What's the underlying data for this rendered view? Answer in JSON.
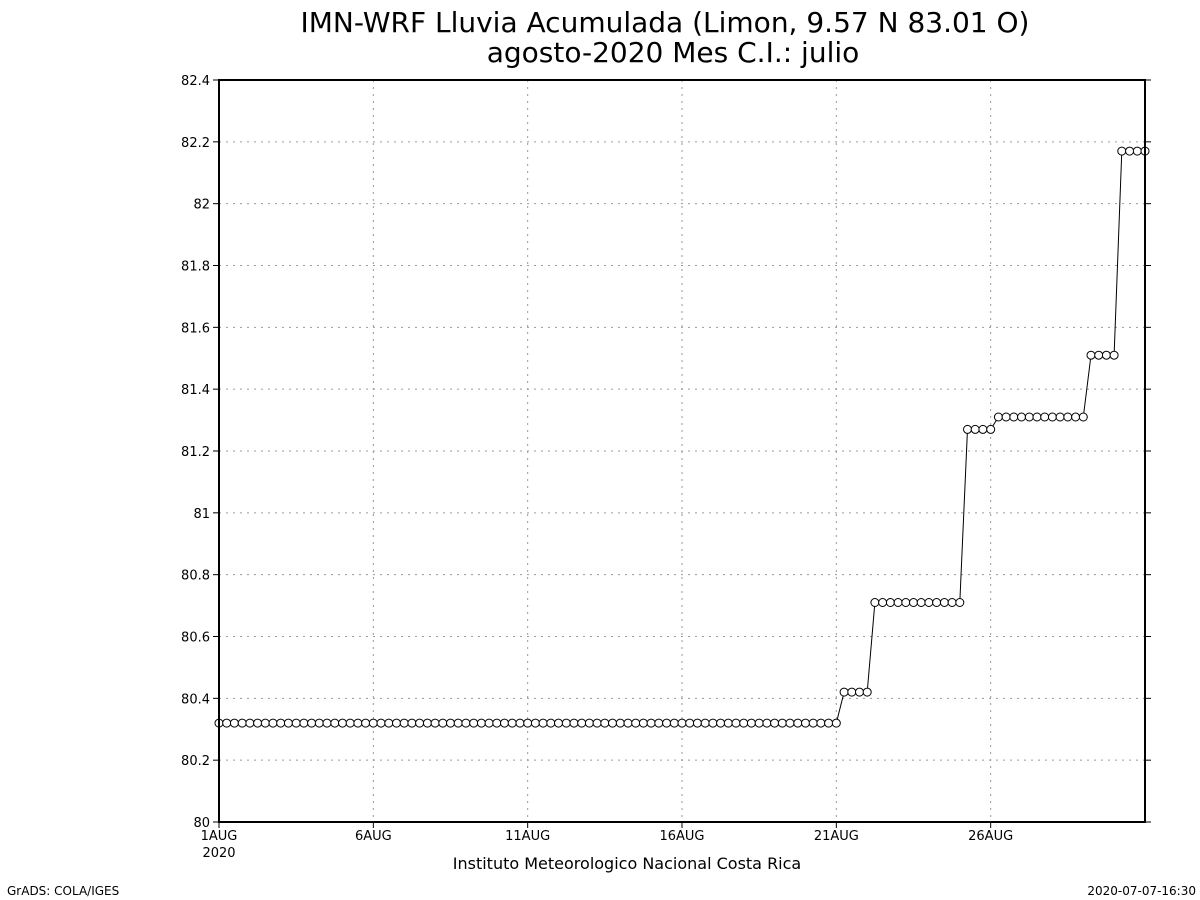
{
  "footer": {
    "left": "GrADS: COLA/IGES",
    "right": "2020-07-07-16:30"
  },
  "chart_data": {
    "type": "line",
    "title": "IMN-WRF  Lluvia Acumulada (Limon, 9.57  N 83.01  O)",
    "subtitle": "agosto-2020 Mes C.I.: julio",
    "xlabel": "Instituto Meteorologico Nacional Costa Rica",
    "ylabel": "",
    "ylim": [
      80,
      82.4
    ],
    "xlim": [
      "2020-08-01T00:00",
      "2020-08-31T00:00"
    ],
    "y_ticks": [
      "80",
      "80.2",
      "80.4",
      "80.6",
      "80.8",
      "81",
      "81.2",
      "81.4",
      "81.6",
      "81.8",
      "82",
      "82.2",
      "82.4"
    ],
    "x_ticks": [
      {
        "label": "1AUG",
        "sublabel": "2020",
        "date": "2020-08-01"
      },
      {
        "label": "6AUG",
        "date": "2020-08-06"
      },
      {
        "label": "11AUG",
        "date": "2020-08-11"
      },
      {
        "label": "16AUG",
        "date": "2020-08-16"
      },
      {
        "label": "21AUG",
        "date": "2020-08-21"
      },
      {
        "label": "26AUG",
        "date": "2020-08-26"
      }
    ],
    "grid": true,
    "marker": "open-circle",
    "series": [
      {
        "sampling": "every 6 hours, 2020-08-01T00:00 to 2020-08-31T00:00",
        "steps": [
          {
            "from": "2020-08-01T00:00",
            "to": "2020-08-21T00:00",
            "value": 80.32
          },
          {
            "from": "2020-08-21T06:00",
            "to": "2020-08-22T00:00",
            "value": 80.42
          },
          {
            "from": "2020-08-22T06:00",
            "to": "2020-08-25T00:00",
            "value": 80.71
          },
          {
            "from": "2020-08-25T06:00",
            "to": "2020-08-26T00:00",
            "value": 81.27
          },
          {
            "from": "2020-08-26T06:00",
            "to": "2020-08-29T00:00",
            "value": 81.31
          },
          {
            "from": "2020-08-29T06:00",
            "to": "2020-08-30T00:00",
            "value": 81.51
          },
          {
            "from": "2020-08-30T06:00",
            "to": "2020-08-31T00:00",
            "value": 82.17
          }
        ]
      }
    ]
  }
}
